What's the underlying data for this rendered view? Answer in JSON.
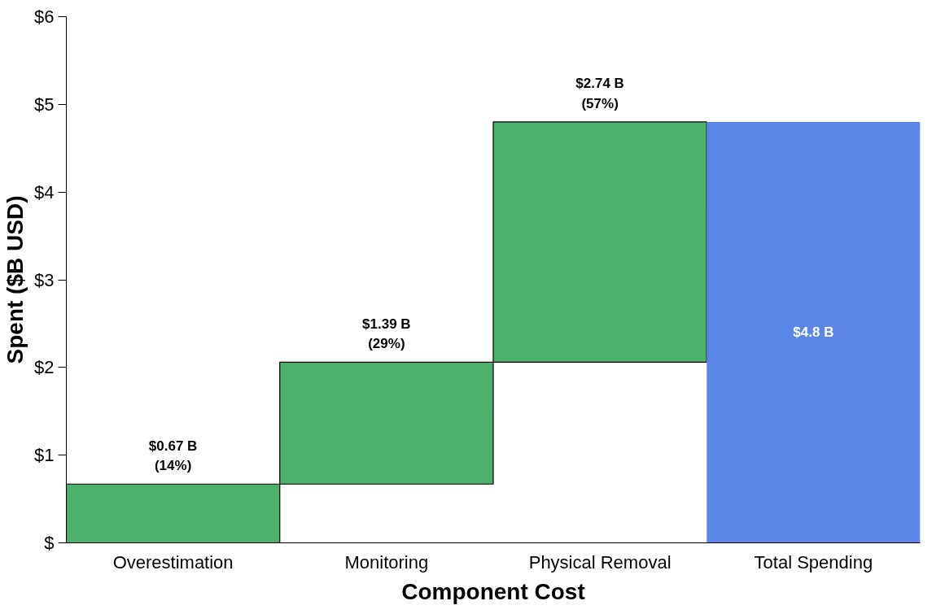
{
  "chart_data": {
    "type": "bar",
    "xlabel": "Component Cost",
    "ylabel": "Spent ($B USD)",
    "categories": [
      "Overestimation",
      "Monitoring",
      "Physical Removal",
      "Total Spending"
    ],
    "values": [
      0.67,
      1.39,
      2.74,
      4.8
    ],
    "base": [
      0,
      0.67,
      2.06,
      0
    ],
    "colors": [
      "#4cb26a",
      "#4cb26a",
      "#4cb26a",
      "#5a86e8"
    ],
    "value_labels": [
      "$0.67 B\n(14%)",
      "$1.39 B\n(29%)",
      "$2.74 B\n(57%)",
      "$4.8 B"
    ],
    "ylim": [
      0,
      6
    ],
    "yticks": [
      {
        "value": 0,
        "label": "$"
      },
      {
        "value": 1,
        "label": "$1"
      },
      {
        "value": 2,
        "label": "$2"
      },
      {
        "value": 3,
        "label": "$3"
      },
      {
        "value": 4,
        "label": "$4"
      },
      {
        "value": 5,
        "label": "$5"
      },
      {
        "value": 6,
        "label": "$6"
      }
    ],
    "grid": false
  }
}
